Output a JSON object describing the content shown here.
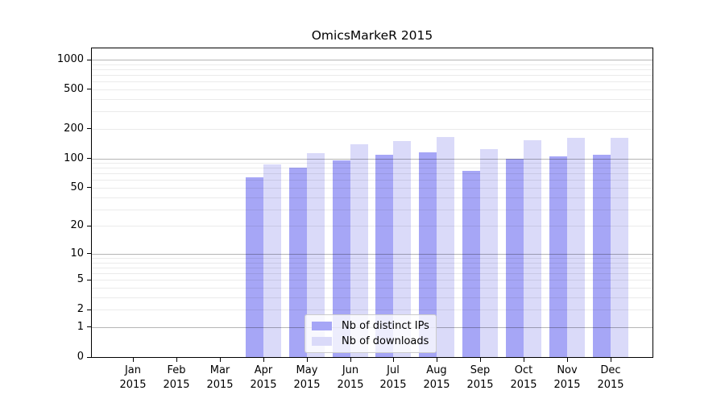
{
  "title": "OmicsMarkeR 2015",
  "chart_data": {
    "type": "bar",
    "title": "OmicsMarkeR 2015",
    "yscale": "log1p",
    "ylim": [
      0,
      1300
    ],
    "yticks": [
      0,
      1,
      2,
      5,
      10,
      20,
      50,
      100,
      200,
      500,
      1000
    ],
    "major_grid_values": [
      1,
      10,
      100,
      1000
    ],
    "grid": true,
    "categories": [
      "Jan",
      "Feb",
      "Mar",
      "Apr",
      "May",
      "Jun",
      "Jul",
      "Aug",
      "Sep",
      "Oct",
      "Nov",
      "Dec"
    ],
    "year_label": "2015",
    "series": [
      {
        "name": "Nb of distinct IPs",
        "color": "#a6a6f6",
        "values": [
          0,
          0,
          0,
          64,
          80,
          96,
          108,
          116,
          74,
          99,
          104,
          109
        ]
      },
      {
        "name": "Nb of downloads",
        "color": "#dadaf9",
        "values": [
          0,
          0,
          0,
          87,
          114,
          140,
          150,
          165,
          124,
          154,
          163,
          161
        ]
      }
    ],
    "legend_position": "lower center",
    "colors": {
      "major_grid": "rgba(0,0,0,0.29)",
      "minor_grid": "rgba(0,0,0,0.08)",
      "axis": "#000000"
    }
  }
}
